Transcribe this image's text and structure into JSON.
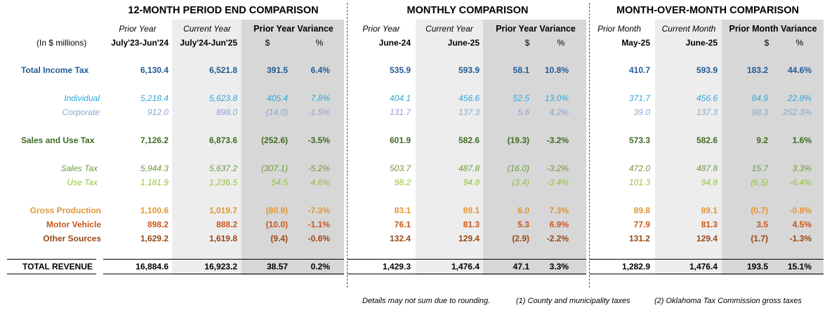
{
  "colors": {
    "total_income_tax": "#1f5a96",
    "individual": "#2fa8d8",
    "corporate": "#8aa4d2",
    "sales_and_use_tax": "#3f6b22",
    "sales_tax": "#6f9a3c",
    "use_tax": "#94c23a",
    "gross_production": "#e39536",
    "motor_vehicle": "#c8561c",
    "other_sources": "#9a4818",
    "total_revenue": "#000000"
  },
  "sections": {
    "period": {
      "title": "12-MONTH PERIOD END COMPARISON",
      "col_a_label": "Prior Year",
      "col_a_period": "July'23-Jun'24",
      "col_b_label": "Current Year",
      "col_b_period": "July'24-Jun'25",
      "variance_label": "Prior Year Variance",
      "dollar": "$",
      "pct": "%"
    },
    "monthly": {
      "title": "MONTHLY COMPARISON",
      "col_a_label": "Prior Year",
      "col_a_period": "June-24",
      "col_b_label": "Current Year",
      "col_b_period": "June-25",
      "variance_label": "Prior Year Variance",
      "dollar": "$",
      "pct": "%"
    },
    "mom": {
      "title": "MONTH-OVER-MONTH COMPARISON",
      "col_a_label": "Prior Month",
      "col_a_period": "May-25",
      "col_b_label": "Current Month",
      "col_b_period": "June-25",
      "variance_label": "Prior Month Variance",
      "dollar": "$",
      "pct": "%"
    }
  },
  "units_label": "(In $ millions)",
  "rows": [
    {
      "key": "total_income_tax",
      "label": "Total Income Tax",
      "period": [
        "6,130.4",
        "6,521.8",
        "391.5",
        "6.4%"
      ],
      "monthly": [
        "535.9",
        "593.9",
        "58.1",
        "10.8%"
      ],
      "mom": [
        "410.7",
        "593.9",
        "183.2",
        "44.6%"
      ]
    },
    {
      "key": "individual",
      "label": "Individual",
      "period": [
        "5,218.4",
        "5,623.8",
        "405.4",
        "7.8%"
      ],
      "monthly": [
        "404.1",
        "456.6",
        "52.5",
        "13.0%"
      ],
      "mom": [
        "371.7",
        "456.6",
        "84.9",
        "22.8%"
      ]
    },
    {
      "key": "corporate",
      "label": "Corporate",
      "period": [
        "912.0",
        "898.0",
        "(14.0)",
        "-1.5%"
      ],
      "monthly": [
        "131.7",
        "137.3",
        "5.6",
        "4.2%"
      ],
      "mom": [
        "39.0",
        "137.3",
        "98.3",
        "252.3%"
      ]
    },
    {
      "key": "sales_and_use_tax",
      "label": "Sales and Use Tax",
      "period": [
        "7,126.2",
        "6,873.6",
        "(252.6)",
        "-3.5%"
      ],
      "monthly": [
        "601.9",
        "582.6",
        "(19.3)",
        "-3.2%"
      ],
      "mom": [
        "573.3",
        "582.6",
        "9.2",
        "1.6%"
      ]
    },
    {
      "key": "sales_tax",
      "label": "Sales Tax",
      "period": [
        "5,944.3",
        "5,637.2",
        "(307.1)",
        "-5.2%"
      ],
      "monthly": [
        "503.7",
        "487.8",
        "(16.0)",
        "-3.2%"
      ],
      "mom": [
        "472.0",
        "487.8",
        "15.7",
        "3.3%"
      ]
    },
    {
      "key": "use_tax",
      "label": "Use Tax",
      "period": [
        "1,181.9",
        "1,236.5",
        "54.5",
        "4.6%"
      ],
      "monthly": [
        "98.2",
        "94.8",
        "(3.4)",
        "-3.4%"
      ],
      "mom": [
        "101.3",
        "94.8",
        "(6.5)",
        "-6.4%"
      ]
    },
    {
      "key": "gross_production",
      "label": "Gross Production",
      "period": [
        "1,100.6",
        "1,019.7",
        "(80.9)",
        "-7.3%"
      ],
      "monthly": [
        "83.1",
        "89.1",
        "6.0",
        "7.3%"
      ],
      "mom": [
        "89.8",
        "89.1",
        "(0.7)",
        "-0.8%"
      ]
    },
    {
      "key": "motor_vehicle",
      "label": "Motor Vehicle",
      "period": [
        "898.2",
        "888.2",
        "(10.0)",
        "-1.1%"
      ],
      "monthly": [
        "76.1",
        "81.3",
        "5.3",
        "6.9%"
      ],
      "mom": [
        "77.9",
        "81.3",
        "3.5",
        "4.5%"
      ]
    },
    {
      "key": "other_sources",
      "label": "Other Sources",
      "period": [
        "1,629.2",
        "1,619.8",
        "(9.4)",
        "-0.6%"
      ],
      "monthly": [
        "132.4",
        "129.4",
        "(2.9)",
        "-2.2%"
      ],
      "mom": [
        "131.2",
        "129.4",
        "(1.7)",
        "-1.3%"
      ]
    },
    {
      "key": "total_revenue",
      "label": "TOTAL REVENUE",
      "period": [
        "16,884.6",
        "16,923.2",
        "38.57",
        "0.2%"
      ],
      "monthly": [
        "1,429.3",
        "1,476.4",
        "47.1",
        "3.3%"
      ],
      "mom": [
        "1,282.9",
        "1,476.4",
        "193.5",
        "15.1%"
      ]
    }
  ],
  "footnotes": {
    "rounding": "Details may not sum due to rounding.",
    "note1": "(1) County and municipality taxes",
    "note2": "(2) Oklahoma Tax Commission gross taxes"
  }
}
